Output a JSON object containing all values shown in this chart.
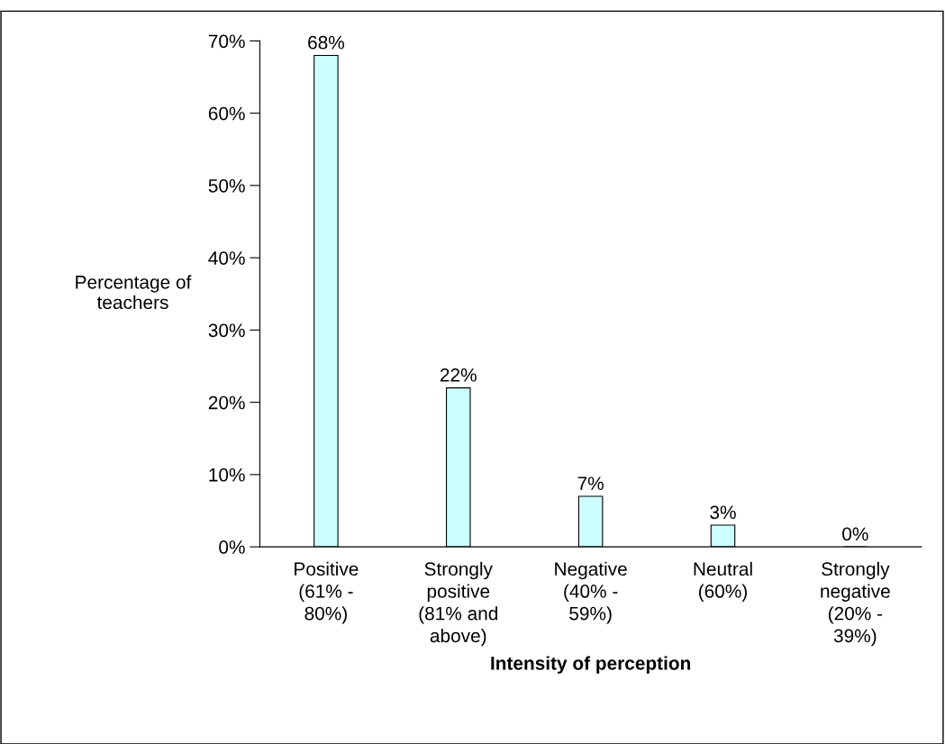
{
  "chart_data": {
    "type": "bar",
    "categories": [
      "Positive\n(61% -\n80%)",
      "Strongly\npositive\n(81% and\nabove)",
      "Negative\n(40% -\n59%)",
      "Neutral\n(60%)",
      "Strongly\nnegative\n(20% -\n39%)"
    ],
    "values": [
      68,
      22,
      7,
      3,
      0
    ],
    "value_labels": [
      "68%",
      "22%",
      "7%",
      "3%",
      "0%"
    ],
    "color": "#ccffff",
    "xlabel": "Intensity of perception",
    "ylabel": "Percentage of\nteachers",
    "ylim": [
      0,
      70
    ],
    "yticks": [
      {
        "value": 0,
        "label": "0%"
      },
      {
        "value": 10,
        "label": "10%"
      },
      {
        "value": 20,
        "label": "20%"
      },
      {
        "value": 30,
        "label": "30%"
      },
      {
        "value": 40,
        "label": "40%"
      },
      {
        "value": 50,
        "label": "50%"
      },
      {
        "value": 60,
        "label": "60%"
      },
      {
        "value": 70,
        "label": "70%"
      }
    ],
    "grid": false,
    "legend": false
  }
}
